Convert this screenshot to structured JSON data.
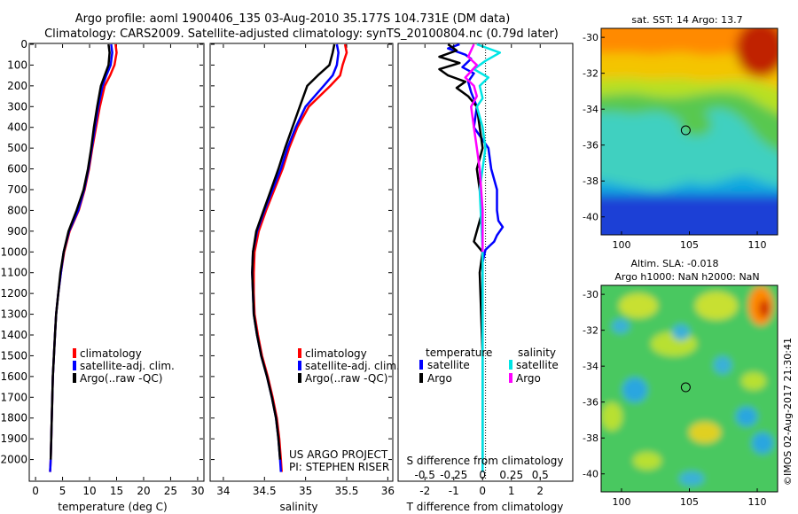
{
  "header": {
    "title_line1": "Argo profile: aoml 1900406_135 03-Aug-2010 35.177S 104.731E (DM data)",
    "title_line2": "Climatology: CARS2009. Satellite-adjusted climatology: synTS_20100804.nc (0.79d later)"
  },
  "credit": "©IMOS 02-Aug-2017 21:30:41",
  "colors": {
    "climatology": "#ff0000",
    "satellite": "#0000ff",
    "argo": "#000000",
    "sal_satellite": "#00e5e5",
    "sal_argo": "#ff00ff"
  },
  "chart_data": [
    {
      "id": "temperature",
      "type": "line",
      "xlabel": "temperature (deg C)",
      "xlim": [
        -1,
        31
      ],
      "xticks": [
        0,
        5,
        10,
        15,
        20,
        25,
        30
      ],
      "ylim": [
        2100,
        0
      ],
      "yticks": [
        0,
        100,
        200,
        300,
        400,
        500,
        600,
        700,
        800,
        900,
        1000,
        1100,
        1200,
        1300,
        1400,
        1500,
        1600,
        1700,
        1800,
        1900,
        2000
      ],
      "legend": [
        "climatology",
        "satellite-adj. clim.",
        "Argo(..raw -QC)"
      ],
      "series": [
        {
          "name": "climatology",
          "color": "#ff0000",
          "x": [
            14.8,
            15.0,
            14.6,
            13.8,
            12.8,
            11.9,
            11.2,
            10.5,
            9.9,
            9.1,
            8.0,
            6.3,
            5.3,
            4.7,
            4.2,
            3.8,
            3.6,
            3.4,
            3.2,
            3.1,
            3.0,
            2.9,
            2.8,
            2.7
          ],
          "y": [
            0,
            40,
            100,
            150,
            200,
            300,
            400,
            500,
            600,
            700,
            800,
            900,
            1000,
            1100,
            1200,
            1300,
            1400,
            1500,
            1600,
            1700,
            1800,
            1900,
            2000,
            2060
          ]
        },
        {
          "name": "satellite-adj. clim.",
          "color": "#0000ff",
          "x": [
            14.0,
            14.2,
            13.9,
            13.1,
            12.4,
            11.6,
            11.0,
            10.4,
            9.8,
            9.0,
            7.9,
            6.2,
            5.2,
            4.7,
            4.2,
            3.8,
            3.6,
            3.4,
            3.2,
            3.1,
            3.0,
            2.9,
            2.8,
            2.7
          ],
          "y": [
            0,
            40,
            100,
            150,
            200,
            300,
            400,
            500,
            600,
            700,
            800,
            900,
            1000,
            1100,
            1200,
            1300,
            1400,
            1500,
            1600,
            1700,
            1800,
            1900,
            2000,
            2060
          ]
        },
        {
          "name": "Argo(..raw -QC)",
          "color": "#000000",
          "x": [
            13.5,
            13.7,
            13.5,
            12.8,
            12.1,
            11.4,
            10.8,
            10.3,
            9.7,
            8.9,
            7.6,
            6.1,
            5.2,
            4.6,
            4.2,
            3.8,
            3.6,
            3.4,
            3.2,
            3.1,
            3.0,
            2.9,
            2.8
          ],
          "y": [
            0,
            40,
            100,
            150,
            200,
            300,
            400,
            500,
            600,
            700,
            800,
            900,
            1000,
            1100,
            1200,
            1300,
            1400,
            1500,
            1600,
            1700,
            1800,
            1900,
            2000
          ]
        }
      ]
    },
    {
      "id": "salinity",
      "type": "line",
      "xlabel": "salinity",
      "xlim": [
        33.85,
        36.05
      ],
      "xticks": [
        34,
        34.5,
        35,
        35.5,
        36
      ],
      "ylim": [
        2100,
        0
      ],
      "legend": [
        "climatology",
        "satellite-adj. clim.",
        "Argo(..raw -QC)"
      ],
      "annotation": [
        "US ARGO PROJECT",
        "PI: STEPHEN RISER"
      ],
      "series": [
        {
          "name": "climatology",
          "color": "#ff0000",
          "x": [
            35.48,
            35.5,
            35.45,
            35.42,
            35.3,
            35.04,
            34.9,
            34.8,
            34.72,
            34.62,
            34.52,
            34.43,
            34.38,
            34.37,
            34.37,
            34.38,
            34.42,
            34.47,
            34.54,
            34.6,
            34.65,
            34.68,
            34.7,
            34.71
          ],
          "y": [
            0,
            40,
            100,
            150,
            200,
            300,
            400,
            500,
            600,
            700,
            800,
            900,
            1000,
            1100,
            1200,
            1300,
            1400,
            1500,
            1600,
            1700,
            1800,
            1900,
            2000,
            2060
          ]
        },
        {
          "name": "satellite-adj. clim.",
          "color": "#0000ff",
          "x": [
            35.38,
            35.4,
            35.38,
            35.33,
            35.22,
            35.0,
            34.88,
            34.78,
            34.7,
            34.6,
            34.5,
            34.41,
            34.36,
            34.35,
            34.36,
            34.37,
            34.41,
            34.46,
            34.53,
            34.59,
            34.64,
            34.67,
            34.69,
            34.7
          ],
          "y": [
            0,
            40,
            100,
            150,
            200,
            300,
            400,
            500,
            600,
            700,
            800,
            900,
            1000,
            1100,
            1200,
            1300,
            1400,
            1500,
            1600,
            1700,
            1800,
            1900,
            2000,
            2060
          ]
        },
        {
          "name": "Argo(..raw -QC)",
          "color": "#000000",
          "x": [
            35.35,
            35.33,
            35.29,
            35.15,
            35.02,
            34.93,
            34.84,
            34.75,
            34.67,
            34.58,
            34.49,
            34.4,
            34.36,
            34.35,
            34.36,
            34.37,
            34.41,
            34.46,
            34.53,
            34.59,
            34.64,
            34.67,
            34.69
          ],
          "y": [
            0,
            40,
            100,
            150,
            200,
            300,
            400,
            500,
            600,
            700,
            800,
            900,
            1000,
            1100,
            1200,
            1300,
            1400,
            1500,
            1600,
            1700,
            1800,
            1900,
            2000
          ]
        }
      ]
    },
    {
      "id": "difference",
      "type": "line",
      "xlabel": "T difference from climatology",
      "xlabel_top": "S difference from climatology",
      "xlim": [
        -2.9,
        3.1
      ],
      "xticks": [
        -2,
        -1,
        0,
        1,
        2
      ],
      "xticks_s": [
        -0.5,
        -0.25,
        0,
        0.25,
        0.5
      ],
      "ylim": [
        2100,
        0
      ],
      "legend_headers": [
        "temperature",
        "salinity"
      ],
      "legend": [
        "satellite",
        "Argo",
        "satellite",
        "Argo"
      ],
      "series": [
        {
          "name": "satellite",
          "group": "temperature",
          "color": "#0000ff",
          "x": [
            -0.8,
            -1.2,
            -0.6,
            -0.4,
            -0.7,
            -0.3,
            -0.5,
            -0.4,
            -0.2,
            -0.3,
            0.2,
            0.3,
            0.5,
            0.5,
            0.55,
            0.7,
            0.5,
            0.4,
            0.1,
            0.0,
            0.0,
            0.0
          ],
          "y": [
            0,
            20,
            50,
            70,
            110,
            140,
            180,
            230,
            300,
            400,
            500,
            600,
            700,
            800,
            850,
            880,
            920,
            950,
            990,
            1050,
            1500,
            2060
          ]
        },
        {
          "name": "Argo",
          "group": "temperature",
          "color": "#000000",
          "x": [
            -1.2,
            -0.9,
            -1.5,
            -0.8,
            -1.5,
            -1.2,
            -0.6,
            -0.9,
            -0.5,
            -0.2,
            -0.1,
            0.0,
            -0.2,
            -0.1,
            0.0,
            -0.3,
            0.0,
            -0.1,
            0.0,
            0.0
          ],
          "y": [
            0,
            30,
            60,
            90,
            120,
            150,
            180,
            210,
            250,
            300,
            400,
            500,
            600,
            700,
            800,
            950,
            1000,
            1100,
            1500,
            2000
          ]
        },
        {
          "name": "satellite",
          "group": "salinity",
          "color": "#00e5e5",
          "x": [
            -0.2,
            0.6,
            0.1,
            -0.3,
            0.2,
            -0.1,
            0.0,
            -0.2,
            0.0,
            0.1,
            -0.1,
            0.0,
            0.0
          ],
          "y": [
            0,
            40,
            80,
            120,
            160,
            200,
            260,
            300,
            400,
            500,
            700,
            1000,
            2060
          ]
        },
        {
          "name": "Argo",
          "group": "salinity",
          "color": "#ff00ff",
          "x": [
            -0.3,
            -0.5,
            -0.2,
            -0.6,
            -0.3,
            -0.2,
            -0.4,
            -0.3,
            -0.2,
            -0.1,
            0.0,
            0.0
          ],
          "y": [
            0,
            60,
            100,
            160,
            200,
            250,
            300,
            400,
            500,
            600,
            800,
            1000
          ]
        }
      ]
    },
    {
      "id": "sst_map",
      "type": "heatmap",
      "title": "sat. SST: 14 Argo: 13.7",
      "xlim": [
        98.5,
        111.5
      ],
      "ylim": [
        -41,
        -29.5
      ],
      "xticks": [
        100,
        105,
        110
      ],
      "yticks": [
        -30,
        -32,
        -34,
        -36,
        -38,
        -40
      ],
      "marker": {
        "lon": 104.731,
        "lat": -35.177
      }
    },
    {
      "id": "sla_map",
      "type": "heatmap",
      "title_line1": "Altim. SLA: -0.018",
      "title_line2": "Argo h1000: NaN h2000: NaN",
      "xlim": [
        98.5,
        111.5
      ],
      "ylim": [
        -41,
        -29.5
      ],
      "xticks": [
        100,
        105,
        110
      ],
      "yticks": [
        -30,
        -32,
        -34,
        -36,
        -38,
        -40
      ],
      "marker": {
        "lon": 104.731,
        "lat": -35.177
      }
    }
  ]
}
